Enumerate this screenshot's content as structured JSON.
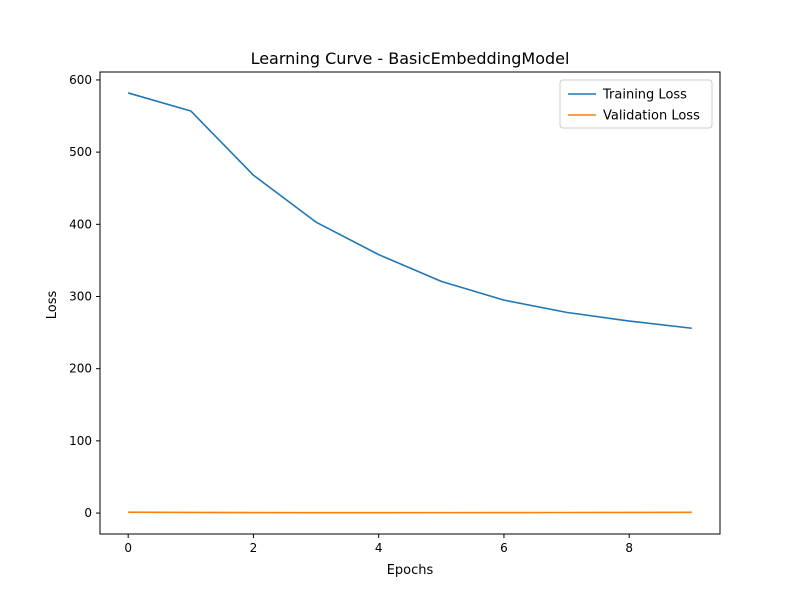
{
  "chart_data": {
    "type": "line",
    "title": "Learning Curve - BasicEmbeddingModel",
    "xlabel": "Epochs",
    "ylabel": "Loss",
    "xlim": [
      -0.45,
      9.45
    ],
    "ylim": [
      -29,
      611
    ],
    "xticks": [
      0,
      2,
      4,
      6,
      8
    ],
    "yticks": [
      0,
      100,
      200,
      300,
      400,
      500,
      600
    ],
    "grid": false,
    "legend_position": "top-right",
    "x": [
      0,
      1,
      2,
      3,
      4,
      5,
      6,
      7,
      8,
      9
    ],
    "series": [
      {
        "name": "Training Loss",
        "color": "#1f77b4",
        "values": [
          582,
          557,
          468,
          403,
          358,
          321,
          295,
          278,
          266,
          256
        ]
      },
      {
        "name": "Validation Loss",
        "color": "#ff7f0e",
        "values": [
          1.2,
          0.9,
          0.7,
          0.5,
          0.5,
          0.6,
          0.7,
          0.8,
          0.9,
          1.0
        ]
      }
    ]
  }
}
